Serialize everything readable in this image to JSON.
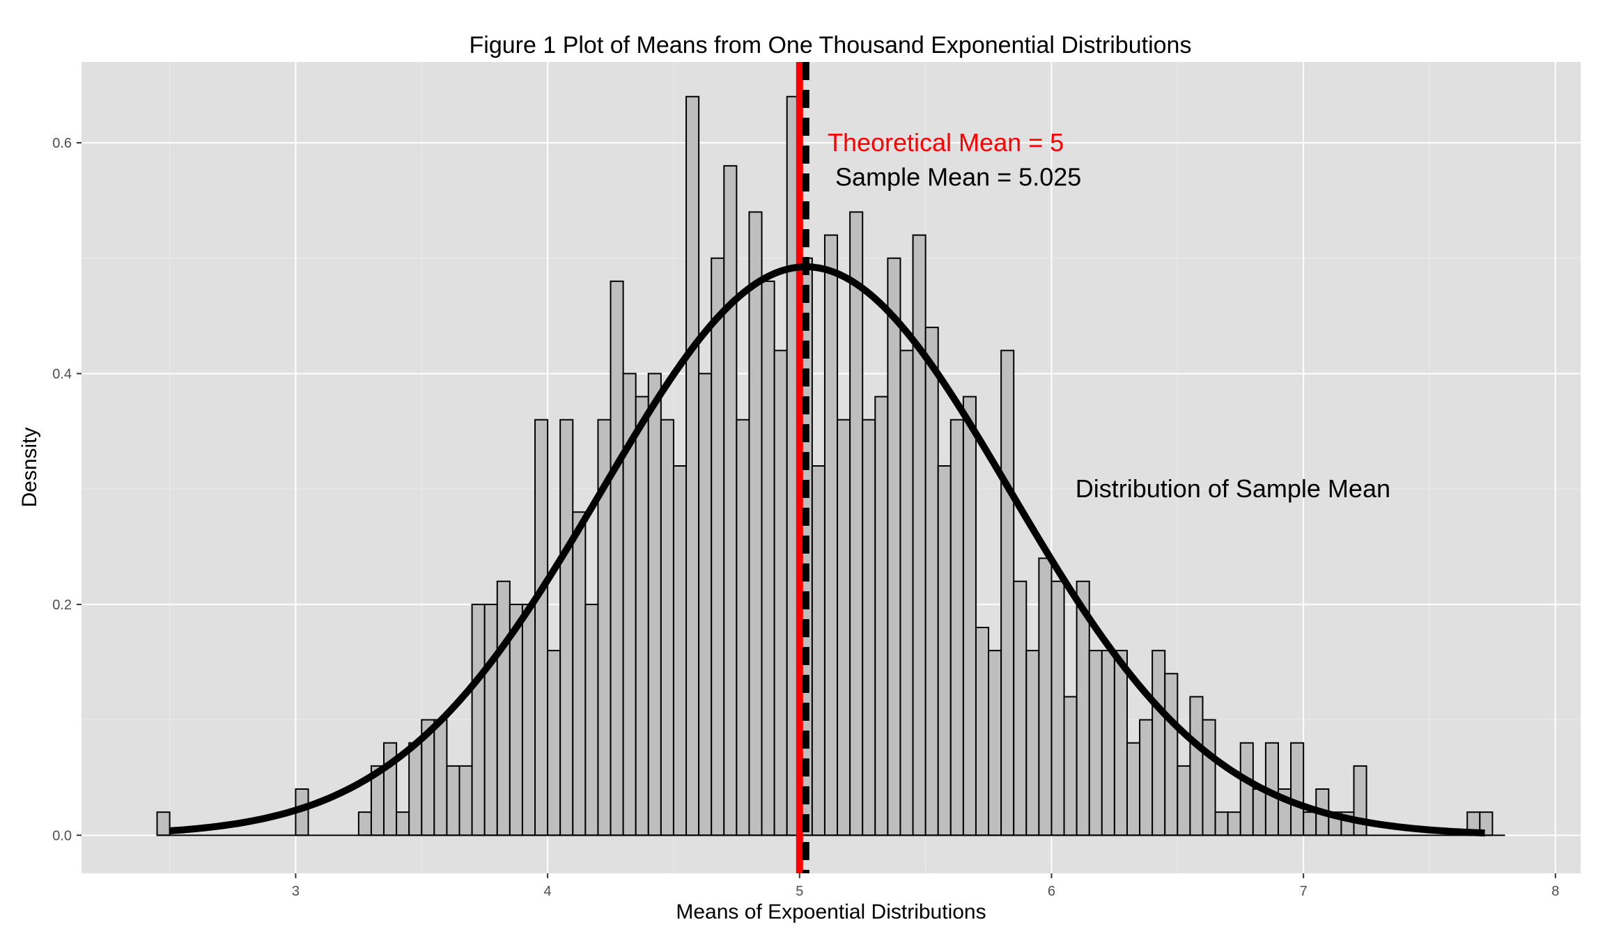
{
  "chart_data": {
    "type": "bar",
    "title": "Figure  1 Plot of Means from One Thousand Exponential Distributions",
    "xlabel": "Means of Expoential Distributions",
    "ylabel": "Desnsity",
    "xlim": [
      2.15,
      8.1
    ],
    "ylim": [
      -0.033,
      0.67
    ],
    "x_ticks": [
      3,
      4,
      5,
      6,
      7,
      8
    ],
    "y_ticks": [
      0.0,
      0.2,
      0.4,
      0.6
    ],
    "x_tick_labels": [
      "3",
      "4",
      "5",
      "6",
      "7",
      "8"
    ],
    "y_tick_labels": [
      "0.0",
      "0.2",
      "0.4",
      "0.6"
    ],
    "grid": true,
    "colors": {
      "panel": "#e0e0e0",
      "grid_major": "#ffffff",
      "grid_minor": "#ececec",
      "bar_fill": "#bebebe",
      "bar_stroke": "#000000",
      "theoretical_line": "#ff0000",
      "sample_line": "#000000",
      "density_curve": "#000000"
    },
    "histogram": {
      "bin_width": 0.05,
      "x_start": 2.45,
      "x_end": 7.8,
      "bins": [
        {
          "x": 2.475,
          "y": 0.02
        },
        {
          "x": 3.025,
          "y": 0.04
        },
        {
          "x": 3.275,
          "y": 0.02
        },
        {
          "x": 3.325,
          "y": 0.06
        },
        {
          "x": 3.375,
          "y": 0.08
        },
        {
          "x": 3.425,
          "y": 0.02
        },
        {
          "x": 3.475,
          "y": 0.08
        },
        {
          "x": 3.525,
          "y": 0.1
        },
        {
          "x": 3.575,
          "y": 0.1
        },
        {
          "x": 3.625,
          "y": 0.06
        },
        {
          "x": 3.675,
          "y": 0.06
        },
        {
          "x": 3.725,
          "y": 0.2
        },
        {
          "x": 3.775,
          "y": 0.2
        },
        {
          "x": 3.825,
          "y": 0.22
        },
        {
          "x": 3.875,
          "y": 0.2
        },
        {
          "x": 3.925,
          "y": 0.2
        },
        {
          "x": 3.975,
          "y": 0.36
        },
        {
          "x": 4.025,
          "y": 0.16
        },
        {
          "x": 4.075,
          "y": 0.36
        },
        {
          "x": 4.125,
          "y": 0.28
        },
        {
          "x": 4.175,
          "y": 0.2
        },
        {
          "x": 4.225,
          "y": 0.36
        },
        {
          "x": 4.275,
          "y": 0.48
        },
        {
          "x": 4.325,
          "y": 0.4
        },
        {
          "x": 4.375,
          "y": 0.38
        },
        {
          "x": 4.425,
          "y": 0.4
        },
        {
          "x": 4.475,
          "y": 0.36
        },
        {
          "x": 4.525,
          "y": 0.32
        },
        {
          "x": 4.575,
          "y": 0.64
        },
        {
          "x": 4.625,
          "y": 0.4
        },
        {
          "x": 4.675,
          "y": 0.5
        },
        {
          "x": 4.725,
          "y": 0.58
        },
        {
          "x": 4.775,
          "y": 0.36
        },
        {
          "x": 4.825,
          "y": 0.54
        },
        {
          "x": 4.875,
          "y": 0.48
        },
        {
          "x": 4.925,
          "y": 0.42
        },
        {
          "x": 4.975,
          "y": 0.64
        },
        {
          "x": 5.025,
          "y": 0.5
        },
        {
          "x": 5.075,
          "y": 0.32
        },
        {
          "x": 5.125,
          "y": 0.52
        },
        {
          "x": 5.175,
          "y": 0.36
        },
        {
          "x": 5.225,
          "y": 0.54
        },
        {
          "x": 5.275,
          "y": 0.36
        },
        {
          "x": 5.325,
          "y": 0.38
        },
        {
          "x": 5.375,
          "y": 0.5
        },
        {
          "x": 5.425,
          "y": 0.42
        },
        {
          "x": 5.475,
          "y": 0.52
        },
        {
          "x": 5.525,
          "y": 0.44
        },
        {
          "x": 5.575,
          "y": 0.32
        },
        {
          "x": 5.625,
          "y": 0.36
        },
        {
          "x": 5.675,
          "y": 0.38
        },
        {
          "x": 5.725,
          "y": 0.18
        },
        {
          "x": 5.775,
          "y": 0.16
        },
        {
          "x": 5.825,
          "y": 0.42
        },
        {
          "x": 5.875,
          "y": 0.22
        },
        {
          "x": 5.925,
          "y": 0.16
        },
        {
          "x": 5.975,
          "y": 0.24
        },
        {
          "x": 6.025,
          "y": 0.22
        },
        {
          "x": 6.075,
          "y": 0.12
        },
        {
          "x": 6.125,
          "y": 0.22
        },
        {
          "x": 6.175,
          "y": 0.16
        },
        {
          "x": 6.225,
          "y": 0.16
        },
        {
          "x": 6.275,
          "y": 0.16
        },
        {
          "x": 6.325,
          "y": 0.08
        },
        {
          "x": 6.375,
          "y": 0.1
        },
        {
          "x": 6.425,
          "y": 0.16
        },
        {
          "x": 6.475,
          "y": 0.14
        },
        {
          "x": 6.525,
          "y": 0.06
        },
        {
          "x": 6.575,
          "y": 0.12
        },
        {
          "x": 6.625,
          "y": 0.1
        },
        {
          "x": 6.675,
          "y": 0.02
        },
        {
          "x": 6.725,
          "y": 0.02
        },
        {
          "x": 6.775,
          "y": 0.08
        },
        {
          "x": 6.825,
          "y": 0.04
        },
        {
          "x": 6.875,
          "y": 0.08
        },
        {
          "x": 6.925,
          "y": 0.04
        },
        {
          "x": 6.975,
          "y": 0.08
        },
        {
          "x": 7.025,
          "y": 0.02
        },
        {
          "x": 7.075,
          "y": 0.04
        },
        {
          "x": 7.125,
          "y": 0.02
        },
        {
          "x": 7.175,
          "y": 0.02
        },
        {
          "x": 7.225,
          "y": 0.06
        },
        {
          "x": 7.675,
          "y": 0.02
        },
        {
          "x": 7.725,
          "y": 0.02
        }
      ]
    },
    "reference_lines": [
      {
        "name": "Theoretical Mean",
        "x": 5.0,
        "style": "solid",
        "color": "#ff0000"
      },
      {
        "name": "Sample Mean",
        "x": 5.025,
        "style": "dashed",
        "color": "#000000"
      }
    ],
    "density_curve": {
      "type": "normal",
      "mean": 5.025,
      "sd": 0.81,
      "x_range": [
        2.5,
        7.72
      ]
    },
    "annotations": [
      {
        "text": "Theoretical Mean = 5",
        "x": 5.58,
        "y": 0.6,
        "color": "#ff0000"
      },
      {
        "text": "Sample Mean = 5.025",
        "x": 5.63,
        "y": 0.57,
        "color": "#000000"
      },
      {
        "text": "Distribution of Sample Mean",
        "x": 6.72,
        "y": 0.3,
        "color": "#000000"
      }
    ]
  }
}
